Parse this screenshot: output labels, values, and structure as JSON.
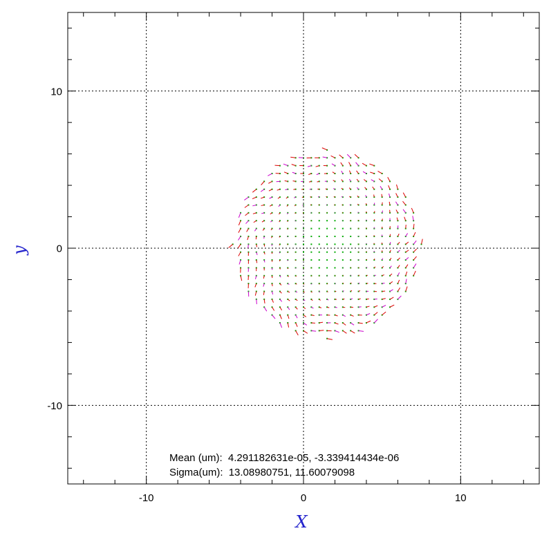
{
  "chart_data": {
    "type": "scatter",
    "title": "",
    "xlabel": "X",
    "ylabel": "y",
    "xlim": [
      -15,
      15
    ],
    "ylim": [
      -15,
      15
    ],
    "major_ticks": [
      -10,
      0,
      10
    ],
    "tick_labels": [
      "-10",
      "0",
      "10"
    ],
    "minor_step": 2,
    "grid": true,
    "grid_style": "dotted",
    "description": "vector field on a grid of points within a circular pupil",
    "field": {
      "center": [
        1.5,
        0.25
      ],
      "radius": 6.0,
      "spacing": 0.5,
      "marker_color": "#00aa00",
      "vector_color": "#dd0000",
      "alt_vector_color": "#cc00cc"
    },
    "annotations": [
      {
        "name": "mean",
        "label": "Mean (um):",
        "values": "4.291182631e-05, -3.339414434e-06"
      },
      {
        "name": "sigma",
        "label": "Sigma(um):",
        "values": "13.08980751, 11.60079098"
      }
    ]
  }
}
